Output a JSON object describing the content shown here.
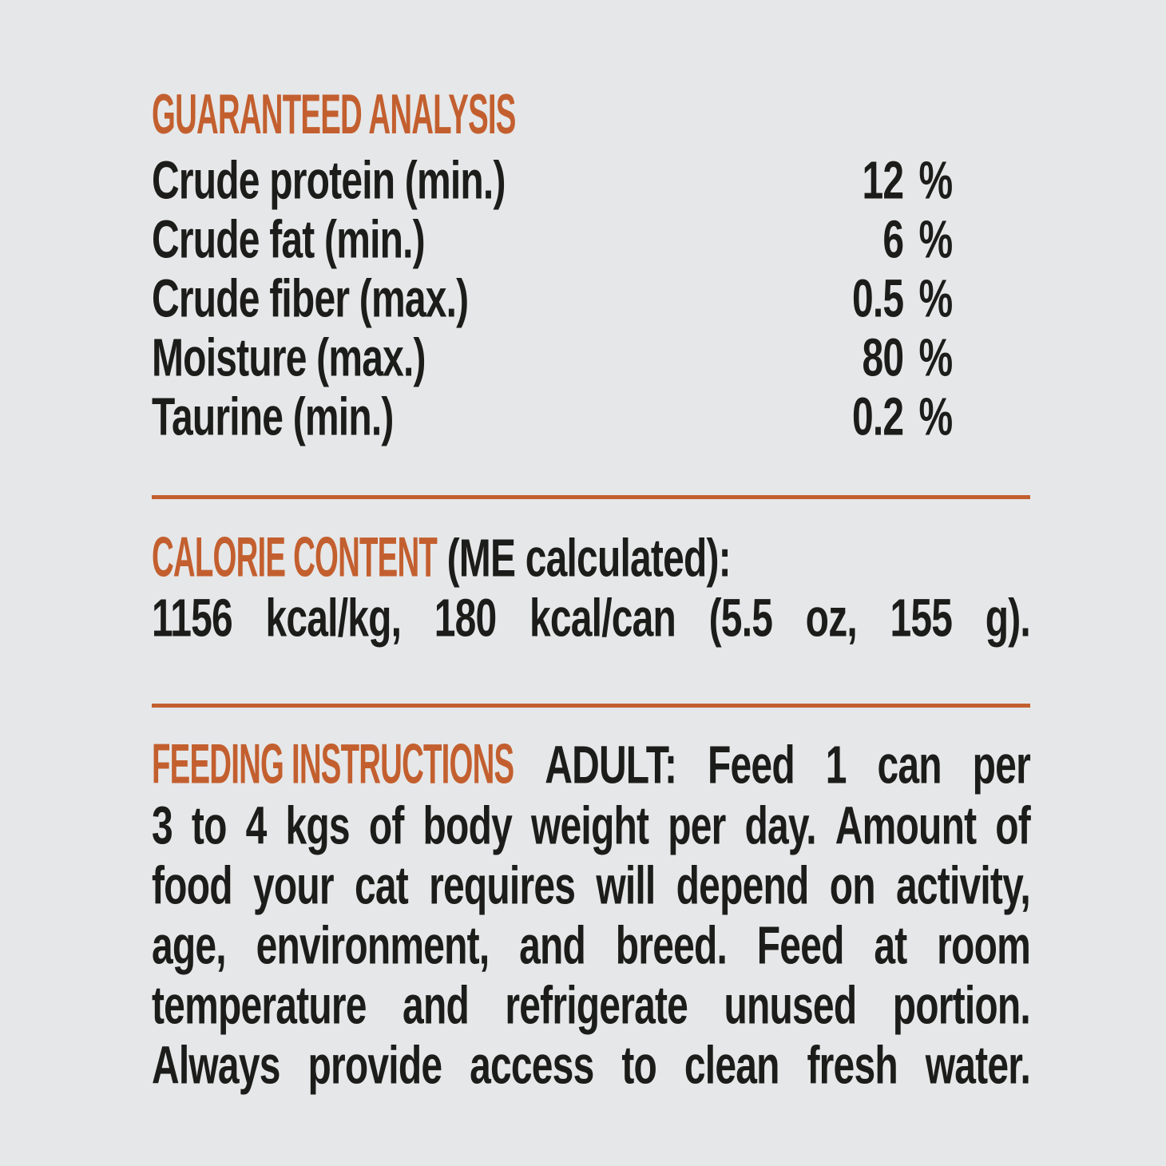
{
  "colors": {
    "accent_orange": "#c35f2f",
    "text_black": "#1c1c1a",
    "background_gray": "#e6e7e8"
  },
  "guaranteed_analysis": {
    "heading": "GUARANTEED ANALYSIS",
    "rows": [
      {
        "label": "Crude protein (min.)",
        "value": "12",
        "unit": "%"
      },
      {
        "label": "Crude fat (min.)",
        "value": "6",
        "unit": "%"
      },
      {
        "label": "Crude fiber (max.)",
        "value": "0.5",
        "unit": "%"
      },
      {
        "label": "Moisture (max.)",
        "value": "80",
        "unit": "%"
      },
      {
        "label": "Taurine (min.)",
        "value": "0.2",
        "unit": "%"
      }
    ]
  },
  "calorie_content": {
    "heading": "CALORIE CONTENT",
    "qualifier": "(ME calculated):",
    "values_line": "1156 kcal/kg, 180 kcal/can (5.5 oz, 155 g)."
  },
  "feeding_instructions": {
    "heading": "FEEDING INSTRUCTIONS",
    "lines": [
      "ADULT: Feed 1 can per",
      "3 to 4 kgs of body weight per day. Amount of",
      "food your cat requires will depend on activity,",
      "age, environment, and breed. Feed at room",
      "temperature and refrigerate unused portion.",
      "Always provide access to clean fresh water."
    ]
  }
}
